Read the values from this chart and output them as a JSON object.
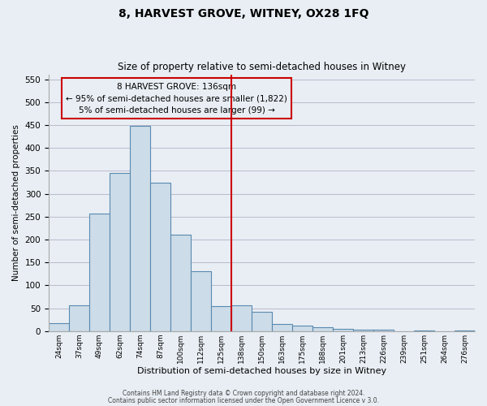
{
  "title": "8, HARVEST GROVE, WITNEY, OX28 1FQ",
  "subtitle": "Size of property relative to semi-detached houses in Witney",
  "xlabel": "Distribution of semi-detached houses by size in Witney",
  "ylabel": "Number of semi-detached properties",
  "bar_labels": [
    "24sqm",
    "37sqm",
    "49sqm",
    "62sqm",
    "74sqm",
    "87sqm",
    "100sqm",
    "112sqm",
    "125sqm",
    "138sqm",
    "150sqm",
    "163sqm",
    "175sqm",
    "188sqm",
    "201sqm",
    "213sqm",
    "226sqm",
    "239sqm",
    "251sqm",
    "264sqm",
    "276sqm"
  ],
  "bar_heights": [
    18,
    57,
    257,
    345,
    448,
    325,
    210,
    130,
    55,
    57,
    42,
    15,
    12,
    8,
    5,
    3,
    3,
    0,
    2,
    0,
    2
  ],
  "bar_color": "#ccdce8",
  "bar_edge_color": "#5a8ab0",
  "marker_index": 9,
  "annotation_title": "8 HARVEST GROVE: 136sqm",
  "annotation_line1": "← 95% of semi-detached houses are smaller (1,822)",
  "annotation_line2": "5% of semi-detached houses are larger (99) →",
  "vline_color": "#cc0000",
  "annotation_box_edge": "#cc0000",
  "ylim": [
    0,
    560
  ],
  "yticks": [
    0,
    50,
    100,
    150,
    200,
    250,
    300,
    350,
    400,
    450,
    500,
    550
  ],
  "footer1": "Contains HM Land Registry data © Crown copyright and database right 2024.",
  "footer2": "Contains public sector information licensed under the Open Government Licence v 3.0.",
  "bg_color": "#e8eef4",
  "plot_bg_color": "#e8eef4"
}
